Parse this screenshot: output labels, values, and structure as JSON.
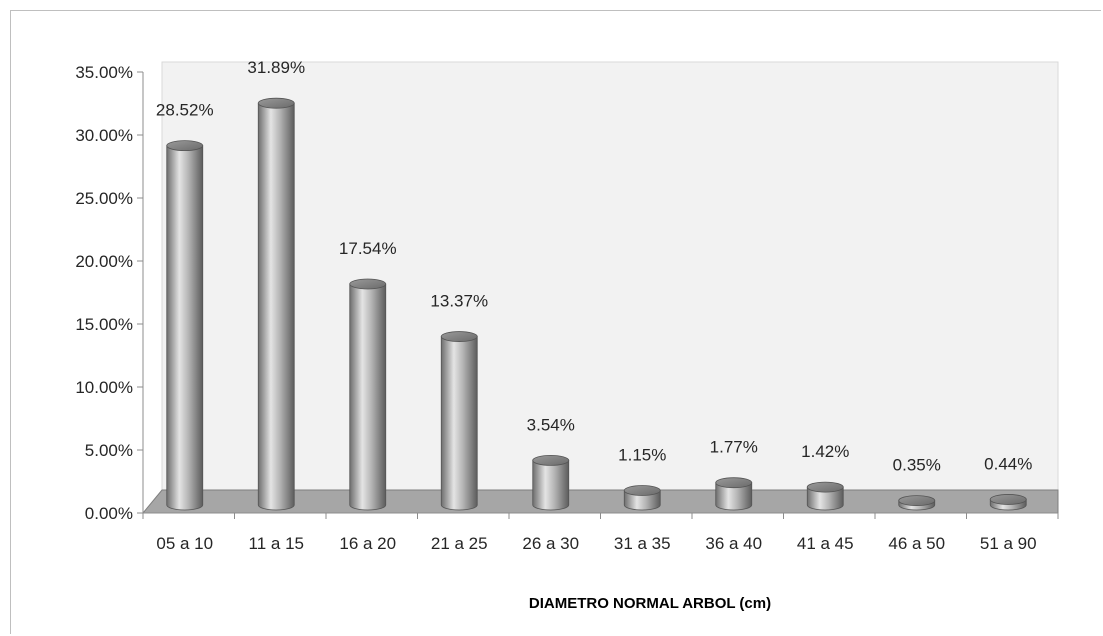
{
  "chart_data": {
    "type": "bar",
    "title": "",
    "xlabel": "DIAMETRO NORMAL ARBOL (cm)",
    "ylabel": "",
    "ylim": [
      0,
      35
    ],
    "y_ticks": [
      "0.00%",
      "5.00%",
      "10.00%",
      "15.00%",
      "20.00%",
      "25.00%",
      "30.00%",
      "35.00%"
    ],
    "categories": [
      "05 a 10",
      "11 a 15",
      "16 a 20",
      "21 a 25",
      "26 a 30",
      "31 a 35",
      "36 a 40",
      "41 a 45",
      "46 a 50",
      "51 a 90"
    ],
    "values": [
      28.52,
      31.89,
      17.54,
      13.37,
      3.54,
      1.15,
      1.77,
      1.42,
      0.35,
      0.44
    ],
    "data_labels": [
      "28.52%",
      "31.89%",
      "17.54%",
      "13.37%",
      "3.54%",
      "1.15%",
      "1.77%",
      "1.42%",
      "0.35%",
      "0.44%"
    ],
    "style": "3d-cylinder",
    "grid": false,
    "legend": "none",
    "colors": {
      "plot_wall": "#f2f2f2",
      "floor": "#a6a6a6",
      "bar_dark": "#6e6e6e",
      "bar_light": "#e4e4e4",
      "axis": "#8c8c8c"
    }
  }
}
